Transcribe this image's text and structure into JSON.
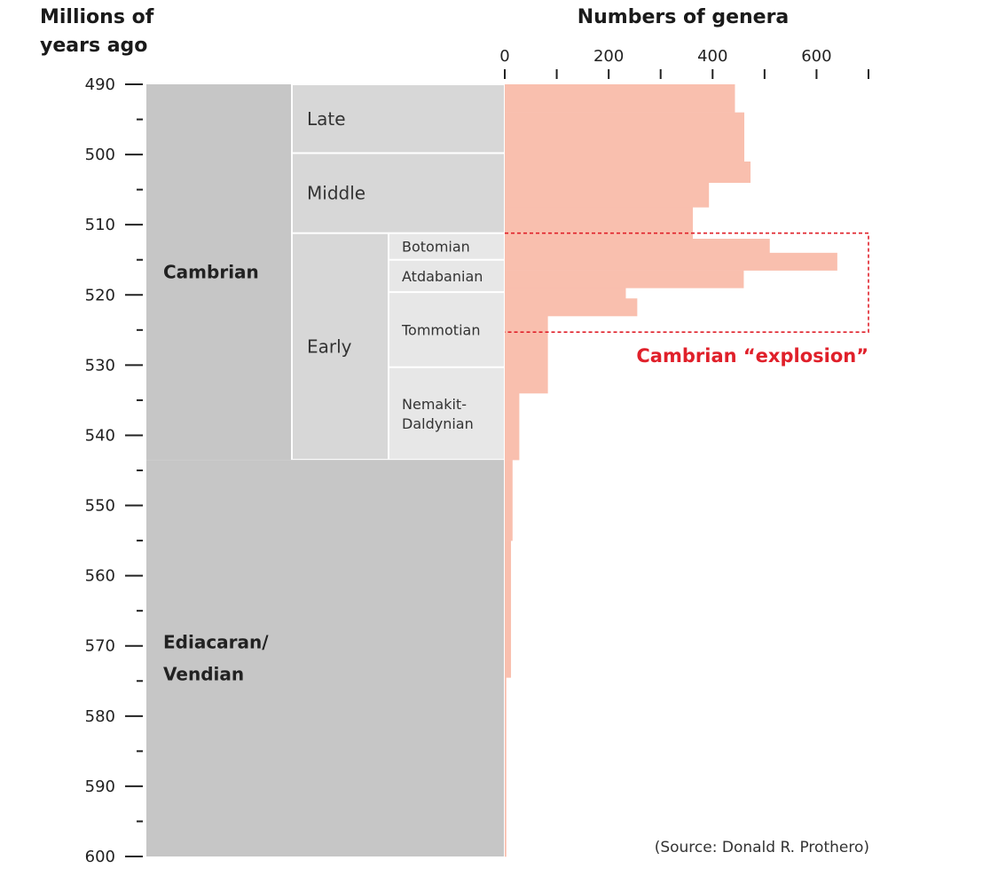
{
  "chart_data": {
    "type": "bar",
    "orientation": "horizontal",
    "y_axis_title": [
      "Millions of",
      "years ago"
    ],
    "x_axis_title": "Numbers of genera",
    "y_ticks": [
      490,
      500,
      510,
      520,
      530,
      540,
      550,
      560,
      570,
      580,
      590,
      600
    ],
    "x_ticks": [
      0,
      200,
      400,
      600
    ],
    "x_minor_ticks": [
      100,
      300,
      500,
      700
    ],
    "ylim": [
      490,
      600
    ],
    "xlim": [
      0,
      700
    ],
    "bar_color": "#f9bfae",
    "bars": [
      {
        "from": 490,
        "to": 494,
        "value": 443
      },
      {
        "from": 494,
        "to": 501,
        "value": 461
      },
      {
        "from": 501,
        "to": 504,
        "value": 473
      },
      {
        "from": 504,
        "to": 507.5,
        "value": 393
      },
      {
        "from": 507.5,
        "to": 512,
        "value": 362
      },
      {
        "from": 512,
        "to": 514,
        "value": 510
      },
      {
        "from": 514,
        "to": 516.5,
        "value": 640
      },
      {
        "from": 516.5,
        "to": 519,
        "value": 460
      },
      {
        "from": 519,
        "to": 520.5,
        "value": 233
      },
      {
        "from": 520.5,
        "to": 523,
        "value": 255
      },
      {
        "from": 523,
        "to": 534,
        "value": 83
      },
      {
        "from": 534,
        "to": 543.5,
        "value": 28
      },
      {
        "from": 543.5,
        "to": 555,
        "value": 15
      },
      {
        "from": 555,
        "to": 574.5,
        "value": 12
      },
      {
        "from": 574.5,
        "to": 600,
        "value": 3
      }
    ],
    "time_scale": {
      "periods": [
        {
          "name": "Cambrian",
          "from": 490,
          "to": 543.5
        },
        {
          "name": "Ediacaran/\nVendian",
          "from": 543.5,
          "to": 600
        }
      ],
      "epochs": [
        {
          "name": "Late",
          "from": 490,
          "to": 499.8
        },
        {
          "name": "Middle",
          "from": 499.8,
          "to": 511.2
        },
        {
          "name": "Early",
          "from": 511.2,
          "to": 543.5
        }
      ],
      "stages": [
        {
          "name": "Botomian",
          "from": 511.2,
          "to": 515
        },
        {
          "name": "Atdabanian",
          "from": 515,
          "to": 519.6
        },
        {
          "name": "Tommotian",
          "from": 519.6,
          "to": 530.3
        },
        {
          "name": "Nemakit-\nDaldynian",
          "from": 530.3,
          "to": 543.5
        }
      ]
    },
    "annotation": {
      "label": "Cambrian “explosion”",
      "from": 511.2,
      "to": 525.3,
      "x_to": 700,
      "color": "#e0202a"
    },
    "source": "(Source: Donald R. Prothero)"
  }
}
